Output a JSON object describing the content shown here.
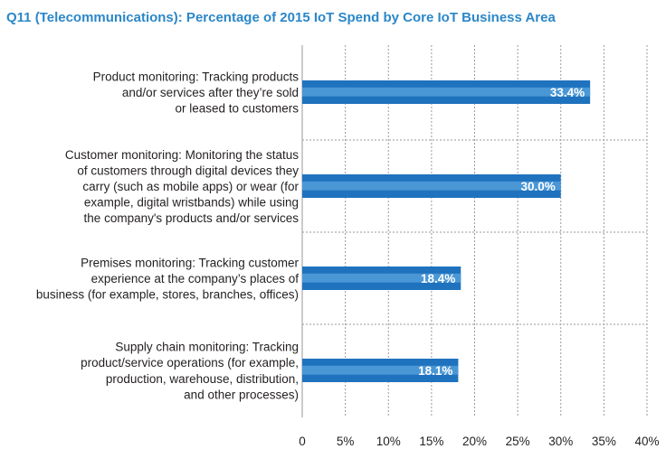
{
  "chart_data": {
    "type": "bar",
    "orientation": "horizontal",
    "title": "Q11 (Telecommunications): Percentage of 2015 IoT Spend by Core IoT Business Area",
    "categories": [
      [
        "Product monitoring: Tracking products",
        "and/or services after they’re sold",
        "or leased to customers"
      ],
      [
        "Customer monitoring: Monitoring the status",
        "of customers through digital devices they",
        "carry (such as mobile apps) or wear (for",
        "example, digital wristbands) while using",
        "the company's products and/or services"
      ],
      [
        "Premises monitoring: Tracking customer",
        "experience at the company’s places of",
        "business (for example, stores, branches, offices)"
      ],
      [
        "Supply chain monitoring: Tracking",
        "product/service operations (for example,",
        "production, warehouse, distribution,",
        "and other processes)"
      ]
    ],
    "values": [
      33.4,
      30.0,
      18.4,
      18.1
    ],
    "value_labels": [
      "33.4%",
      "30.0%",
      "18.4%",
      "18.1%"
    ],
    "xlim": [
      0,
      40
    ],
    "x_ticks": [
      "0",
      "5%",
      "10%",
      "15%",
      "20%",
      "25%",
      "30%",
      "35%",
      "40%"
    ],
    "grid": "vertical dashed",
    "colors": {
      "bar": "#1f72bd",
      "bar_highlight": "#4a97d6",
      "title": "#2b87c8",
      "grid": "#9a9a9a",
      "text": "#231f20"
    }
  }
}
